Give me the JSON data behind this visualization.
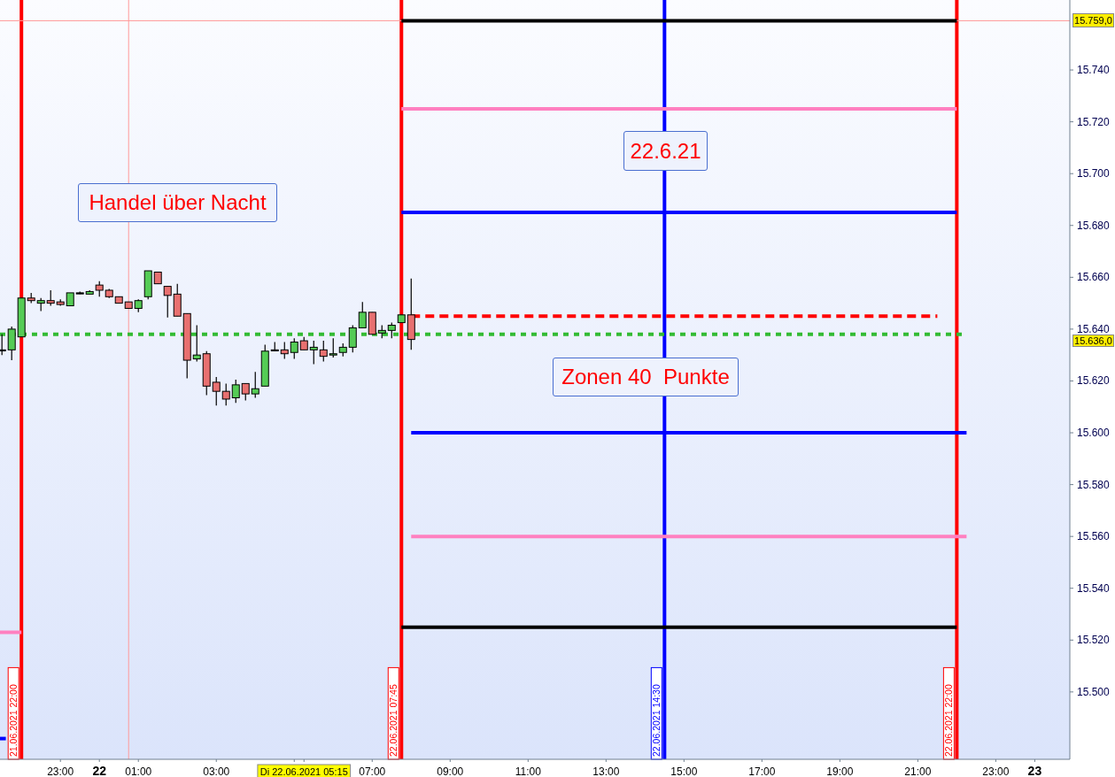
{
  "chart_data": {
    "type": "candlestick",
    "x": [
      "2021-06-21T21:30",
      "2021-06-21T21:45",
      "2021-06-21T22:00",
      "2021-06-21T22:15",
      "2021-06-21T22:30",
      "2021-06-21T22:45",
      "2021-06-21T23:00",
      "2021-06-21T23:15",
      "2021-06-21T23:30",
      "2021-06-21T23:45",
      "2021-06-22T00:00",
      "2021-06-22T00:15",
      "2021-06-22T00:30",
      "2021-06-22T00:45",
      "2021-06-22T01:00",
      "2021-06-22T01:15",
      "2021-06-22T01:30",
      "2021-06-22T01:45",
      "2021-06-22T02:00",
      "2021-06-22T02:15",
      "2021-06-22T02:30",
      "2021-06-22T02:45",
      "2021-06-22T03:00",
      "2021-06-22T03:15",
      "2021-06-22T03:30",
      "2021-06-22T03:45",
      "2021-06-22T04:00",
      "2021-06-22T04:15",
      "2021-06-22T04:30",
      "2021-06-22T04:45",
      "2021-06-22T05:00",
      "2021-06-22T05:15",
      "2021-06-22T05:30",
      "2021-06-22T05:45",
      "2021-06-22T06:00",
      "2021-06-22T06:15",
      "2021-06-22T06:30",
      "2021-06-22T06:45",
      "2021-06-22T07:00",
      "2021-06-22T07:15",
      "2021-06-22T07:30",
      "2021-06-22T07:45",
      "2021-06-22T08:00"
    ],
    "ohlc": [
      [
        15632,
        15638,
        15630,
        15632
      ],
      [
        15632,
        15641,
        15628,
        15640
      ],
      [
        15637,
        15652,
        15637,
        15652
      ],
      [
        15652,
        15654,
        15650,
        15651
      ],
      [
        15650,
        15652,
        15647,
        15651
      ],
      [
        15651,
        15655,
        15649,
        15650
      ],
      [
        15650.5,
        15651.5,
        15649,
        15649.5
      ],
      [
        15649,
        15654,
        15649,
        15654
      ],
      [
        15654,
        15654.5,
        15653.5,
        15654
      ],
      [
        15653.5,
        15655,
        15653.5,
        15654.5
      ],
      [
        15657,
        15658.5,
        15652.5,
        15655
      ],
      [
        15655,
        15655.5,
        15652,
        15652.5
      ],
      [
        15652.5,
        15652.5,
        15650,
        15650
      ],
      [
        15650.5,
        15650.5,
        15648,
        15648
      ],
      [
        15648,
        15651.5,
        15646.5,
        15651
      ],
      [
        15652.5,
        15662.5,
        15651.5,
        15662.5
      ],
      [
        15662,
        15662,
        15657.5,
        15657.5
      ],
      [
        15656.5,
        15656.5,
        15644.5,
        15653
      ],
      [
        15653.5,
        15657.5,
        15645,
        15645
      ],
      [
        15646,
        15646,
        15621,
        15628
      ],
      [
        15628.5,
        15641.5,
        15627.5,
        15630
      ],
      [
        15630.5,
        15631.5,
        15614.5,
        15618
      ],
      [
        15619.5,
        15621.5,
        15610.5,
        15616
      ],
      [
        15616,
        15619,
        15610.5,
        15613
      ],
      [
        15613.5,
        15620.5,
        15611.5,
        15618.5
      ],
      [
        15619,
        15619,
        15612.5,
        15615
      ],
      [
        15615,
        15623.5,
        15613.5,
        15617
      ],
      [
        15618,
        15634,
        15618,
        15631.5
      ],
      [
        15632,
        15635,
        15631.5,
        15632
      ],
      [
        15632,
        15635,
        15628.5,
        15630.5
      ],
      [
        15631,
        15636.5,
        15628.5,
        15635
      ],
      [
        15635.5,
        15637,
        15632,
        15632
      ],
      [
        15632,
        15635.5,
        15626.5,
        15633
      ],
      [
        15632,
        15635.5,
        15627.5,
        15629.5
      ],
      [
        15630,
        15636.5,
        15629,
        15630.5
      ],
      [
        15631,
        15634.5,
        15629.5,
        15633
      ],
      [
        15633,
        15641.5,
        15631,
        15640.5
      ],
      [
        15640.5,
        15650.5,
        15640.5,
        15646.5
      ],
      [
        15646.5,
        15646.5,
        15638,
        15638
      ],
      [
        15638.5,
        15641.5,
        15636.5,
        15639.5
      ],
      [
        15639.5,
        15642.5,
        15636.5,
        15641.5
      ],
      [
        15642.5,
        15645.5,
        15642.5,
        15645.5
      ],
      [
        15645.5,
        15659.5,
        15632,
        15636
      ]
    ],
    "colors": [
      "#000000",
      "#55cc55",
      "#55cc55",
      "#e87070",
      "#55cc55",
      "#e87070",
      "#e87070",
      "#55cc55",
      "#000000",
      "#55cc55",
      "#e87070",
      "#e87070",
      "#e87070",
      "#e87070",
      "#55cc55",
      "#55cc55",
      "#e87070",
      "#e87070",
      "#e87070",
      "#e87070",
      "#55cc55",
      "#e87070",
      "#e87070",
      "#e87070",
      "#55cc55",
      "#e87070",
      "#55cc55",
      "#55cc55",
      "#000000",
      "#e87070",
      "#55cc55",
      "#e87070",
      "#55cc55",
      "#e87070",
      "#55cc55",
      "#55cc55",
      "#55cc55",
      "#55cc55",
      "#e87070",
      "#55cc55",
      "#55cc55",
      "#55cc55",
      "#e87070"
    ],
    "series": [
      {
        "type": "line",
        "x": [
          "2021-06-22T07:45",
          "2021-06-22T22:00"
        ],
        "values": [
          15759,
          15759
        ],
        "color": "#000000",
        "line_style": "solid"
      },
      {
        "type": "line",
        "x": [
          "2021-06-22T07:45",
          "2021-06-22T22:00"
        ],
        "values": [
          15725,
          15725
        ],
        "color": "#ff80c0",
        "line_style": "solid"
      },
      {
        "type": "line",
        "x": [
          "2021-06-22T07:45",
          "2021-06-22T22:00"
        ],
        "values": [
          15685,
          15685
        ],
        "color": "#0000ff",
        "line_style": "solid"
      },
      {
        "type": "line",
        "x": [
          "2021-06-22T08:00",
          "2021-06-22T21:30"
        ],
        "values": [
          15645,
          15645
        ],
        "color": "#ff0000",
        "line_style": "dashed"
      },
      {
        "type": "line",
        "x": [
          "2021-06-21T21:27",
          "2021-06-22T22:15"
        ],
        "values": [
          15638,
          15638
        ],
        "color": "#33bb33",
        "line_style": "dotted"
      },
      {
        "type": "line",
        "x": [
          "2021-06-22T08:00",
          "2021-06-22T22:15"
        ],
        "values": [
          15600,
          15600
        ],
        "color": "#0000ff",
        "line_style": "solid"
      },
      {
        "type": "line",
        "x": [
          "2021-06-22T08:00",
          "2021-06-22T22:15"
        ],
        "values": [
          15560,
          15560
        ],
        "color": "#ff80c0",
        "line_style": "solid"
      },
      {
        "type": "line",
        "x": [
          "2021-06-22T07:45",
          "2021-06-22T22:00"
        ],
        "values": [
          15525,
          15525
        ],
        "color": "#000000",
        "line_style": "solid"
      },
      {
        "type": "line",
        "x": [
          "2021-06-21T21:27",
          "2021-06-21T22:00"
        ],
        "values": [
          15523,
          15523
        ],
        "color": "#ff80c0",
        "line_style": "solid"
      },
      {
        "type": "line",
        "x": [
          "2021-06-21T21:27",
          "2021-06-21T21:36"
        ],
        "values": [
          15482,
          15482
        ],
        "color": "#0000ff",
        "line_style": "solid"
      }
    ],
    "xlim": [
      "2021-06-21T21:27",
      "2021-06-23T00:54"
    ],
    "xticks": [
      {
        "value": "2021-06-21T23:00",
        "label": "23:00"
      },
      {
        "value": "2021-06-22T00:00",
        "label": "22"
      },
      {
        "value": "2021-06-22T01:00",
        "label": "01:00"
      },
      {
        "value": "2021-06-22T03:00",
        "label": "03:00"
      },
      {
        "value": "2021-06-22T05:00",
        "label": null
      },
      {
        "value": "2021-06-22T05:15",
        "label": "Di 22.06.2021 05:15"
      },
      {
        "value": "2021-06-22T07:00",
        "label": "07:00"
      },
      {
        "value": "2021-06-22T09:00",
        "label": "09:00"
      },
      {
        "value": "2021-06-22T11:00",
        "label": "11:00"
      },
      {
        "value": "2021-06-22T13:00",
        "label": "13:00"
      },
      {
        "value": "2021-06-22T15:00",
        "label": "15:00"
      },
      {
        "value": "2021-06-22T17:00",
        "label": "17:00"
      },
      {
        "value": "2021-06-22T19:00",
        "label": "19:00"
      },
      {
        "value": "2021-06-22T21:00",
        "label": "21:00"
      },
      {
        "value": "2021-06-22T23:00",
        "label": "23:00"
      },
      {
        "value": "2021-06-23T00:00",
        "label": "23"
      }
    ],
    "ylim": [
      15474,
      15767
    ],
    "yticks": [
      {
        "value": 15500,
        "label": "15.500"
      },
      {
        "value": 15520,
        "label": "15.520"
      },
      {
        "value": 15540,
        "label": "15.540"
      },
      {
        "value": 15560,
        "label": "15.560"
      },
      {
        "value": 15580,
        "label": "15.580"
      },
      {
        "value": 15600,
        "label": "15.600"
      },
      {
        "value": 15620,
        "label": "15.620"
      },
      {
        "value": 15640,
        "label": "15.640"
      },
      {
        "value": 15660,
        "label": "15.660"
      },
      {
        "value": 15680,
        "label": "15.680"
      },
      {
        "value": 15700,
        "label": "15.700"
      },
      {
        "value": 15720,
        "label": "15.720"
      },
      {
        "value": 15740,
        "label": "15.740"
      }
    ],
    "ref_lines": [
      {
        "axis": "x",
        "value": "2021-06-21T22:00",
        "label": "21.06.2021 22:00",
        "color": "#ff0000"
      },
      {
        "axis": "x",
        "value": "2021-06-22T07:45",
        "label": "22.06.2021 07:45",
        "color": "#ff0000"
      },
      {
        "axis": "x",
        "value": "2021-06-22T14:30",
        "label": "22.06.2021 14:30",
        "color": "#0000ff"
      },
      {
        "axis": "x",
        "value": "2021-06-22T22:00",
        "label": "22.06.2021 22:00",
        "color": "#ff0000"
      },
      {
        "axis": "x",
        "value": "2021-06-22T00:45",
        "color": "#ff9999"
      },
      {
        "axis": "y",
        "value": 15759,
        "color": "#ff9999"
      }
    ],
    "annotations": [
      "Handel über Nacht",
      "22.6.21",
      "Zonen 40  Punkte",
      "15.759,0",
      "15.636,0"
    ]
  }
}
